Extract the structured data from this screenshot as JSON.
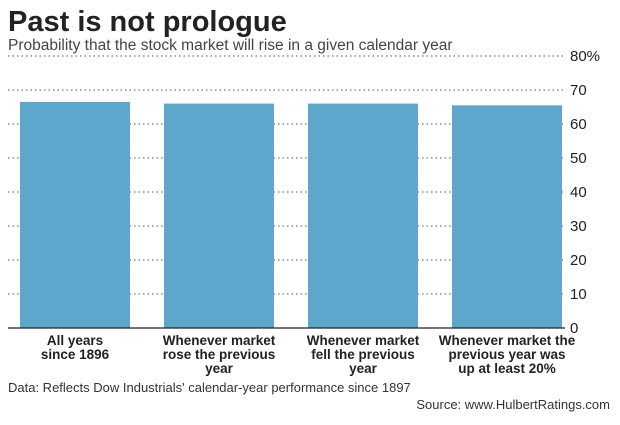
{
  "chart_data": {
    "type": "bar",
    "title": "Past is not prologue",
    "subtitle": "Probability that the stock market will rise in a given calendar year",
    "categories": [
      [
        "All years",
        "since 1896"
      ],
      [
        "Whenever market",
        "rose the previous",
        "year"
      ],
      [
        "Whenever market",
        "fell the previous",
        "year"
      ],
      [
        "Whenever market the",
        "previous year was",
        "up at least 20%"
      ]
    ],
    "values": [
      66.5,
      66,
      66,
      65.5
    ],
    "ylim": [
      0,
      80
    ],
    "yticks": [
      {
        "value": 0,
        "label": "0"
      },
      {
        "value": 10,
        "label": "10"
      },
      {
        "value": 20,
        "label": "20"
      },
      {
        "value": 30,
        "label": "30"
      },
      {
        "value": 40,
        "label": "40"
      },
      {
        "value": 50,
        "label": "50"
      },
      {
        "value": 60,
        "label": "60"
      },
      {
        "value": 70,
        "label": "70"
      },
      {
        "value": 80,
        "label": "80%"
      }
    ],
    "y_axis_side": "right",
    "grid": true,
    "bar_color": "#5ba8cc",
    "footnote": "Data: Reflects Dow Industrials' calendar-year performance since 1897",
    "source": "Source: www.HulbertRatings.com"
  }
}
